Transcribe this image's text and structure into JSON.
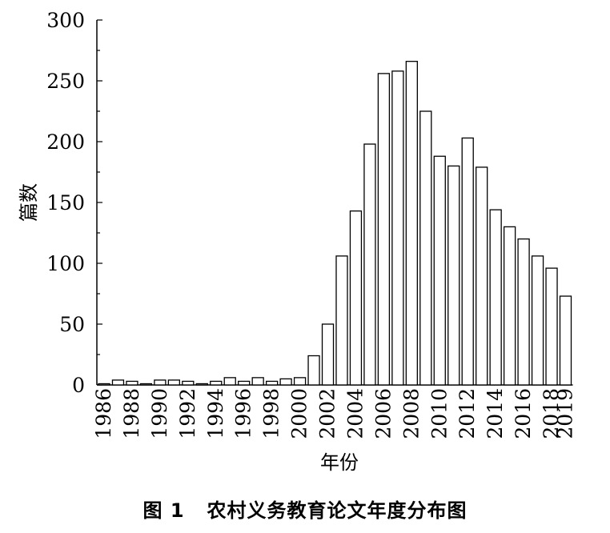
{
  "caption": {
    "figure_label": "图 1",
    "title": "农村义务教育论文年度分布图"
  },
  "chart_data": {
    "type": "bar",
    "title": "",
    "xlabel": "年份",
    "ylabel": "篇数",
    "ylim": [
      0,
      300
    ],
    "yticks": [
      0,
      50,
      100,
      150,
      200,
      250,
      300
    ],
    "x_tick_labels": [
      "1986",
      "1988",
      "1990",
      "1992",
      "1994",
      "1996",
      "1998",
      "2000",
      "2002",
      "2004",
      "2006",
      "2008",
      "2010",
      "2012",
      "2014",
      "2016",
      "2018",
      "2019"
    ],
    "categories": [
      "1986",
      "1987",
      "1988",
      "1989",
      "1990",
      "1991",
      "1992",
      "1993",
      "1994",
      "1995",
      "1996",
      "1997",
      "1998",
      "1999",
      "2000",
      "2001",
      "2002",
      "2003",
      "2004",
      "2005",
      "2006",
      "2007",
      "2008",
      "2009",
      "2010",
      "2011",
      "2012",
      "2013",
      "2014",
      "2015",
      "2016",
      "2017",
      "2018",
      "2019"
    ],
    "values": [
      1,
      4,
      3,
      0,
      4,
      4,
      3,
      1,
      3,
      6,
      3,
      6,
      3,
      5,
      6,
      24,
      50,
      106,
      143,
      198,
      256,
      258,
      266,
      225,
      188,
      180,
      203,
      179,
      144,
      130,
      120,
      106,
      96,
      73
    ],
    "grid": false,
    "legend": "none"
  }
}
